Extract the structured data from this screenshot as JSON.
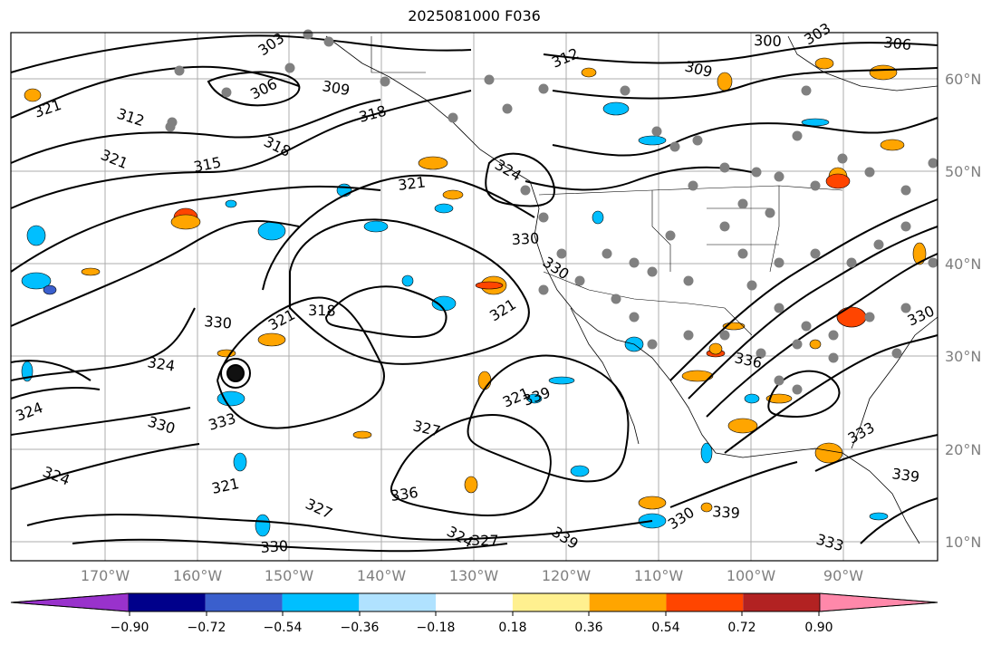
{
  "title": "2025081000 F036",
  "map": {
    "lat_labels": [
      "60°N",
      "50°N",
      "40°N",
      "30°N",
      "20°N",
      "10°N"
    ],
    "lon_labels": [
      "170°W",
      "160°W",
      "150°W",
      "140°W",
      "130°W",
      "120°W",
      "110°W",
      "100°W",
      "90°W"
    ],
    "contour_labels": [
      "303",
      "300",
      "303",
      "306",
      "306",
      "309",
      "312",
      "309",
      "321",
      "312",
      "318",
      "321",
      "315",
      "318",
      "321",
      "324",
      "330",
      "330",
      "318",
      "321",
      "330",
      "321",
      "324",
      "321",
      "327",
      "339",
      "330",
      "333",
      "324",
      "321",
      "327",
      "336",
      "324",
      "330",
      "339",
      "327",
      "330",
      "339",
      "333",
      "339",
      "330",
      "336",
      "324",
      "333"
    ]
  },
  "colorbar": {
    "colors": [
      "#9932cc",
      "#00008b",
      "#3a5fcd",
      "#00bfff",
      "#b0e2ff",
      "#ffffff",
      "#fff08f",
      "#ffa500",
      "#ff4500",
      "#b22222",
      "#ff88aa"
    ],
    "tick_labels": [
      "−0.90",
      "−0.72",
      "−0.54",
      "−0.36",
      "−0.18",
      "0.18",
      "0.36",
      "0.54",
      "0.72",
      "0.90"
    ]
  }
}
